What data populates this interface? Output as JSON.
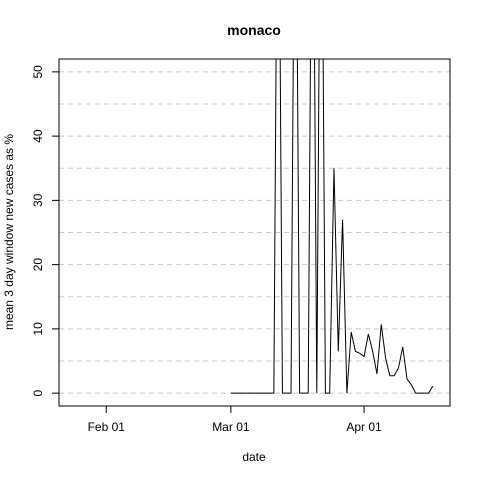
{
  "chart_data": {
    "type": "line",
    "title": "monaco",
    "xlabel": "date",
    "ylabel": "mean  3  day window new cases as %",
    "x_ticks": [
      {
        "date": "2020-02-01",
        "label": "Feb 01"
      },
      {
        "date": "2020-03-01",
        "label": "Mar 01"
      },
      {
        "date": "2020-04-01",
        "label": "Apr 01"
      }
    ],
    "y_ticks": [
      0,
      10,
      20,
      30,
      40,
      50
    ],
    "xlim": [
      "2020-01-21",
      "2020-04-21"
    ],
    "ylim": [
      -2,
      52
    ],
    "grid": "horizontal dashed",
    "colors": {
      "line": "#000000",
      "grid": "#c8c8c8"
    },
    "series": [
      {
        "x": [
          "2020-03-01",
          "2020-03-02",
          "2020-03-03",
          "2020-03-04",
          "2020-03-05",
          "2020-03-06",
          "2020-03-07",
          "2020-03-08",
          "2020-03-09",
          "2020-03-10",
          "2020-03-11",
          "2020-03-12",
          "2020-03-13",
          "2020-03-14",
          "2020-03-15",
          "2020-03-16",
          "2020-03-17",
          "2020-03-18",
          "2020-03-19",
          "2020-03-20",
          "2020-03-21",
          "2020-03-22",
          "2020-03-23",
          "2020-03-24",
          "2020-03-25",
          "2020-03-26",
          "2020-03-27",
          "2020-03-28",
          "2020-03-29",
          "2020-03-30",
          "2020-03-31",
          "2020-04-01",
          "2020-04-02",
          "2020-04-03",
          "2020-04-04",
          "2020-04-05",
          "2020-04-06",
          "2020-04-07",
          "2020-04-08",
          "2020-04-09",
          "2020-04-10",
          "2020-04-11",
          "2020-04-12",
          "2020-04-13",
          "2020-04-14",
          "2020-04-15",
          "2020-04-16",
          "2020-04-17"
        ],
        "y": [
          0,
          0,
          0,
          0,
          0,
          0,
          0,
          0,
          0,
          0,
          0,
          100,
          0,
          0,
          0,
          100,
          0,
          0,
          0,
          100,
          0,
          100,
          0,
          0,
          35,
          6.5,
          27,
          0,
          9.5,
          6.5,
          6.2,
          5.7,
          9.2,
          6.5,
          3,
          10.7,
          5.5,
          2.7,
          2.7,
          3.9,
          7.2,
          2.2,
          1.3,
          0,
          0,
          0,
          0,
          1.1
        ]
      }
    ]
  }
}
